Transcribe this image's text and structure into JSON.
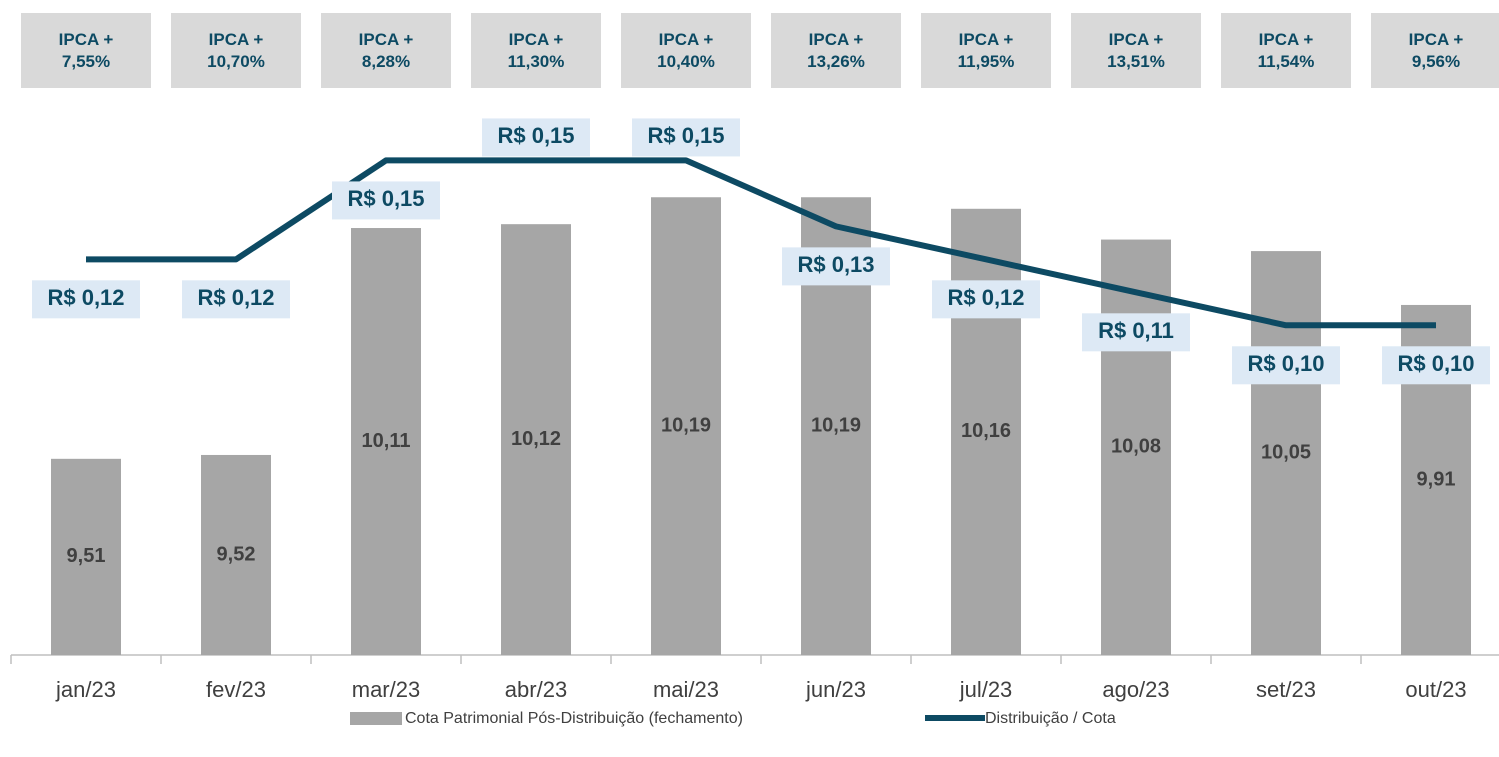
{
  "chart_data": {
    "type": "bar_line",
    "categories": [
      "jan/23",
      "fev/23",
      "mar/23",
      "abr/23",
      "mai/23",
      "jun/23",
      "jul/23",
      "ago/23",
      "set/23",
      "out/23"
    ],
    "annotations": [
      "IPCA + 7,55%",
      "IPCA + 10,70%",
      "IPCA + 8,28%",
      "IPCA + 11,30%",
      "IPCA + 10,40%",
      "IPCA + 13,26%",
      "IPCA + 11,95%",
      "IPCA + 13,51%",
      "IPCA + 11,54%",
      "IPCA + 9,56%"
    ],
    "series": [
      {
        "name": "Cota Patrimonial Pós-Distribuição (fechamento)",
        "type": "bar",
        "color": "#a6a6a6",
        "values": [
          9.51,
          9.52,
          10.11,
          10.12,
          10.19,
          10.19,
          10.16,
          10.08,
          10.05,
          9.91
        ],
        "value_labels": [
          "9,51",
          "9,52",
          "10,11",
          "10,12",
          "10,19",
          "10,19",
          "10,16",
          "10,08",
          "10,05",
          "9,91"
        ]
      },
      {
        "name": "Distribuição / Cota",
        "type": "line",
        "axis": "y2",
        "color": "#0d4a63",
        "values": [
          0.12,
          0.12,
          0.15,
          0.15,
          0.15,
          0.13,
          0.12,
          0.11,
          0.1,
          0.1
        ],
        "value_labels": [
          "R$ 0,12",
          "R$ 0,12",
          "R$ 0,15",
          "R$ 0,15",
          "R$ 0,15",
          "R$ 0,13",
          "R$ 0,12",
          "R$ 0,11",
          "R$ 0,10",
          "R$ 0,10"
        ]
      }
    ],
    "ylim": [
      9.0,
      10.5
    ],
    "y2lim": [
      0,
      0.175
    ],
    "grid": false
  }
}
